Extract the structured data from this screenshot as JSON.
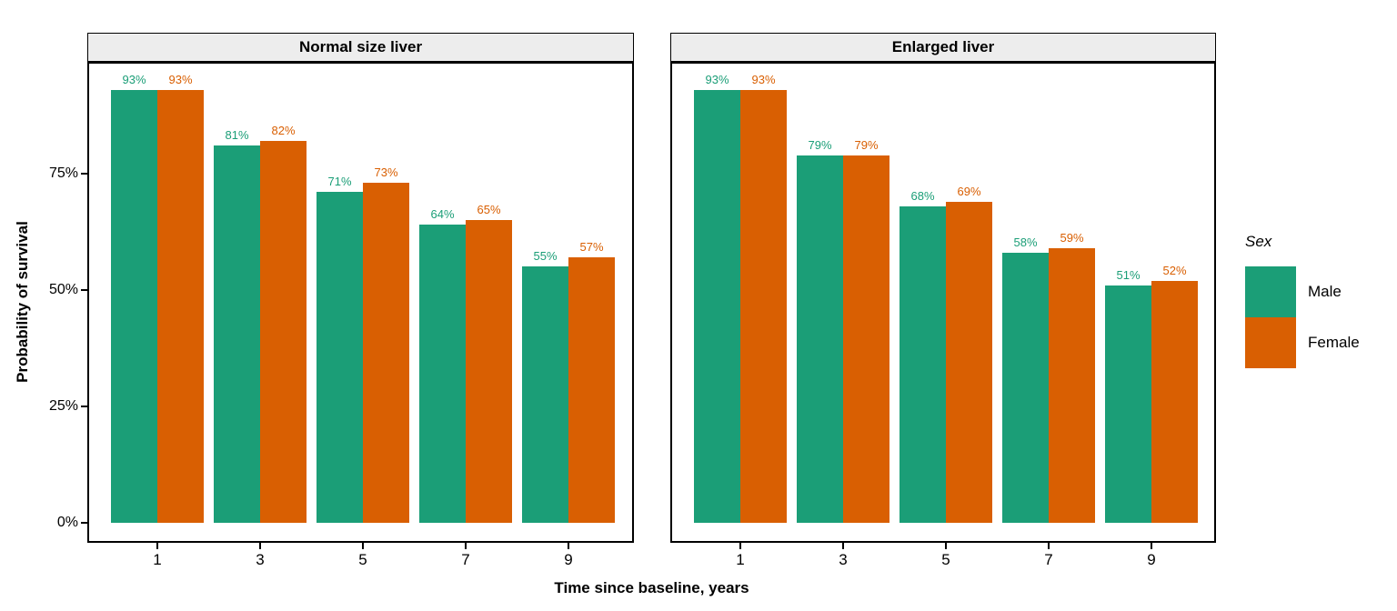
{
  "chart_data": {
    "type": "bar",
    "title": "",
    "xlabel": "Time since baseline, years",
    "ylabel": "Probability of survival",
    "categories": [
      "1",
      "3",
      "5",
      "7",
      "9"
    ],
    "facets": [
      {
        "label": "Normal size liver",
        "series": [
          {
            "name": "Male",
            "values": [
              93,
              81,
              71,
              64,
              55
            ]
          },
          {
            "name": "Female",
            "values": [
              93,
              82,
              73,
              65,
              57
            ]
          }
        ]
      },
      {
        "label": "Enlarged liver",
        "series": [
          {
            "name": "Male",
            "values": [
              93,
              79,
              68,
              58,
              51
            ]
          },
          {
            "name": "Female",
            "values": [
              93,
              79,
              69,
              59,
              52
            ]
          }
        ]
      }
    ],
    "value_label_suffix": "%",
    "y_ticks": [
      {
        "label": "0%",
        "value": 0
      },
      {
        "label": "25%",
        "value": 25
      },
      {
        "label": "50%",
        "value": 50
      },
      {
        "label": "75%",
        "value": 75
      }
    ],
    "ylim": [
      0,
      100
    ],
    "grid": false,
    "legend": {
      "title": "Sex",
      "position": "right",
      "entries": [
        {
          "label": "Male",
          "color": "#1b9e77"
        },
        {
          "label": "Female",
          "color": "#d95f02"
        }
      ]
    }
  },
  "colors": {
    "male": "#1b9e77",
    "female": "#d95f02",
    "strip_background": "#ededed",
    "panel_border": "#000000",
    "background": "#ffffff"
  }
}
